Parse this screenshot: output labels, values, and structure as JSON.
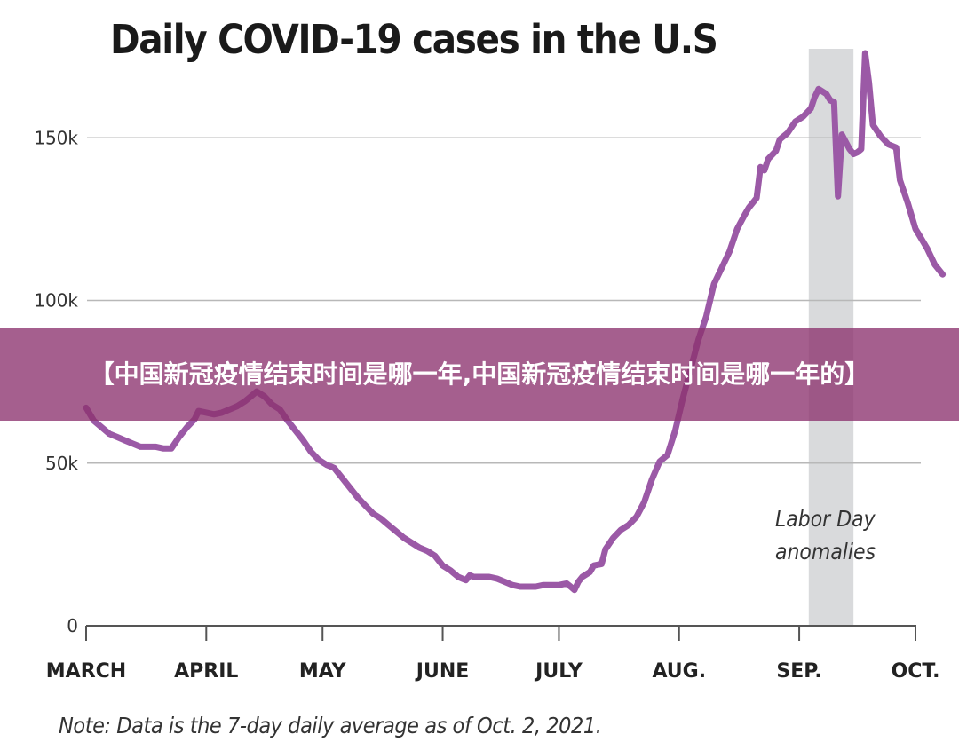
{
  "banner": {
    "text": "【中国新冠疫情结束时间是哪一年,中国新冠疫情结束时间是哪一年的】"
  },
  "chart_data": {
    "type": "line",
    "title": "Daily COVID-19 cases in the U.S",
    "note": "Note: Data is the 7-day daily average as of Oct. 2, 2021.",
    "xlabel": "",
    "ylabel": "",
    "ylim": [
      0,
      175000
    ],
    "y_ticks": [
      {
        "value": 0,
        "label": "0"
      },
      {
        "value": 50000,
        "label": "50k"
      },
      {
        "value": 100000,
        "label": "100k"
      },
      {
        "value": 150000,
        "label": "150k"
      }
    ],
    "x_ticks": [
      {
        "day": 0,
        "label": "MARCH"
      },
      {
        "day": 31,
        "label": "APRIL"
      },
      {
        "day": 61,
        "label": "MAY"
      },
      {
        "day": 92,
        "label": "JUNE"
      },
      {
        "day": 122,
        "label": "JULY"
      },
      {
        "day": 153,
        "label": "AUG."
      },
      {
        "day": 184,
        "label": "SEP."
      },
      {
        "day": 214,
        "label": "OCT."
      }
    ],
    "x_unit": "days since March 1, 2021",
    "grid": "horizontal",
    "shaded_region": {
      "start_day": 186,
      "end_day": 198,
      "label": "Labor Day anomalies",
      "color": "#d9dadc"
    },
    "series": [
      {
        "name": "7-day daily average",
        "color": "#9b59a6",
        "points": [
          [
            0,
            67000
          ],
          [
            2,
            63000
          ],
          [
            4,
            61000
          ],
          [
            6,
            59000
          ],
          [
            8,
            58000
          ],
          [
            10,
            57000
          ],
          [
            12,
            56000
          ],
          [
            14,
            55000
          ],
          [
            16,
            55000
          ],
          [
            18,
            55000
          ],
          [
            20,
            54500
          ],
          [
            22,
            54500
          ],
          [
            24,
            58000
          ],
          [
            26,
            61000
          ],
          [
            28,
            63500
          ],
          [
            29,
            66000
          ],
          [
            31,
            65500
          ],
          [
            33,
            65000
          ],
          [
            35,
            65500
          ],
          [
            37,
            66500
          ],
          [
            39,
            67500
          ],
          [
            41,
            69000
          ],
          [
            43,
            71000
          ],
          [
            44,
            72000
          ],
          [
            46,
            70500
          ],
          [
            48,
            68000
          ],
          [
            50,
            66500
          ],
          [
            52,
            63000
          ],
          [
            54,
            60000
          ],
          [
            56,
            57000
          ],
          [
            58,
            53500
          ],
          [
            60,
            51000
          ],
          [
            62,
            49500
          ],
          [
            64,
            48500
          ],
          [
            66,
            45500
          ],
          [
            68,
            42500
          ],
          [
            70,
            39500
          ],
          [
            72,
            37000
          ],
          [
            74,
            34500
          ],
          [
            76,
            33000
          ],
          [
            78,
            31000
          ],
          [
            80,
            29000
          ],
          [
            82,
            27000
          ],
          [
            84,
            25500
          ],
          [
            86,
            24000
          ],
          [
            88,
            23000
          ],
          [
            90,
            21500
          ],
          [
            92,
            18500
          ],
          [
            94,
            17000
          ],
          [
            96,
            15000
          ],
          [
            97,
            14500
          ],
          [
            98,
            14000
          ],
          [
            99,
            15500
          ],
          [
            100,
            15000
          ],
          [
            102,
            15000
          ],
          [
            104,
            15000
          ],
          [
            106,
            14500
          ],
          [
            108,
            13500
          ],
          [
            110,
            12500
          ],
          [
            112,
            12000
          ],
          [
            114,
            12000
          ],
          [
            116,
            12000
          ],
          [
            118,
            12500
          ],
          [
            120,
            12500
          ],
          [
            122,
            12500
          ],
          [
            124,
            13000
          ],
          [
            125,
            12000
          ],
          [
            126,
            11000
          ],
          [
            127,
            13500
          ],
          [
            128,
            15000
          ],
          [
            130,
            16500
          ],
          [
            131,
            18500
          ],
          [
            133,
            19000
          ],
          [
            134,
            23500
          ],
          [
            136,
            27000
          ],
          [
            138,
            29500
          ],
          [
            140,
            31000
          ],
          [
            142,
            33500
          ],
          [
            144,
            38000
          ],
          [
            146,
            45000
          ],
          [
            148,
            50500
          ],
          [
            150,
            52500
          ],
          [
            152,
            60000
          ],
          [
            154,
            70000
          ],
          [
            156,
            79000
          ],
          [
            158,
            88000
          ],
          [
            160,
            95000
          ],
          [
            162,
            105000
          ],
          [
            164,
            110000
          ],
          [
            166,
            115000
          ],
          [
            168,
            122000
          ],
          [
            170,
            126500
          ],
          [
            171,
            128500
          ],
          [
            172,
            130000
          ],
          [
            173,
            131500
          ],
          [
            174,
            141000
          ],
          [
            175,
            140000
          ],
          [
            176,
            143500
          ],
          [
            178,
            146000
          ],
          [
            179,
            149500
          ],
          [
            181,
            151500
          ],
          [
            183,
            155000
          ],
          [
            185,
            156500
          ],
          [
            187,
            159000
          ],
          [
            188,
            162500
          ],
          [
            189,
            165000
          ],
          [
            191,
            163500
          ],
          [
            192,
            161500
          ],
          [
            193,
            161000
          ],
          [
            194,
            132000
          ],
          [
            195,
            151000
          ],
          [
            197,
            146500
          ],
          [
            198,
            145000
          ],
          [
            199,
            145500
          ],
          [
            200,
            146500
          ],
          [
            201,
            176000
          ],
          [
            202,
            167000
          ],
          [
            203,
            154000
          ],
          [
            205,
            150500
          ],
          [
            207,
            148000
          ],
          [
            209,
            147000
          ],
          [
            210,
            137000
          ],
          [
            212,
            130000
          ],
          [
            214,
            122000
          ],
          [
            215,
            120000
          ],
          [
            217,
            116000
          ],
          [
            219,
            111000
          ],
          [
            221,
            108000
          ]
        ]
      }
    ]
  }
}
